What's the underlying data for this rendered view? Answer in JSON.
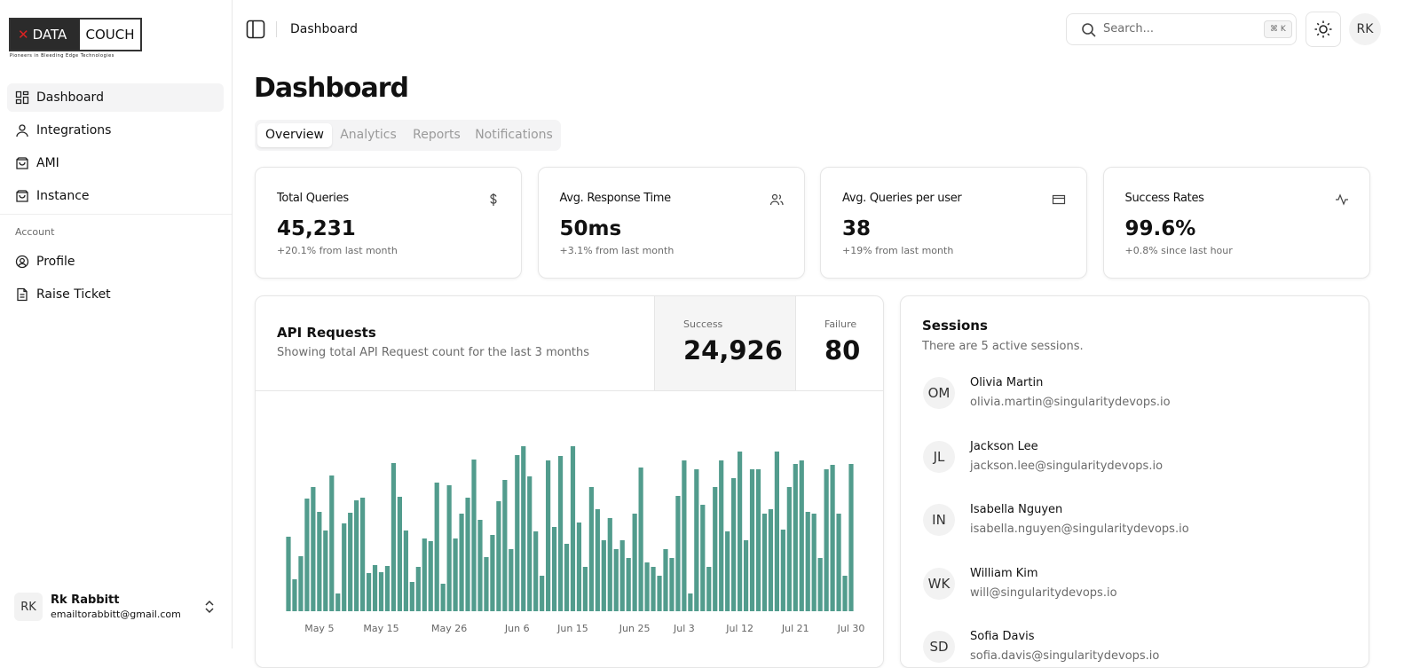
{
  "logo": {
    "brand1": "DATA",
    "brand2": "COUCH",
    "tagline": "Pioneers in Bleeding Edge Technologies"
  },
  "sidebar": {
    "nav": [
      "Dashboard",
      "Integrations",
      "AMI",
      "Instance"
    ],
    "section": "Account",
    "account_nav": [
      "Profile",
      "Raise Ticket"
    ],
    "user": {
      "initials": "RK",
      "name": "Rk Rabbitt",
      "email": "emailtorabbitt@gmail.com"
    }
  },
  "header": {
    "breadcrumb": "Dashboard",
    "search": "Search...",
    "shortcut": "⌘ K",
    "avatar": "RK"
  },
  "page_title": "Dashboard",
  "tabs": [
    "Overview",
    "Analytics",
    "Reports",
    "Notifications"
  ],
  "stats": [
    {
      "label": "Total Queries",
      "value": "45,231",
      "note": "+20.1% from last month"
    },
    {
      "label": "Avg. Response Time",
      "value": "50ms",
      "note": "+3.1% from last month"
    },
    {
      "label": "Avg. Queries per user",
      "value": "38",
      "note": "+19% from last month"
    },
    {
      "label": "Success Rates",
      "value": "99.6%",
      "note": "+0.8% since last hour"
    }
  ],
  "api": {
    "title": "API Requests",
    "subtitle": "Showing total API Request count for the last 3 months",
    "success_label": "Success",
    "success": "24,926",
    "failure_label": "Failure",
    "failure": "80"
  },
  "sessions": {
    "title": "Sessions",
    "subtitle": "There are 5 active sessions.",
    "people": [
      {
        "initials": "OM",
        "name": "Olivia Martin",
        "email": "olivia.martin@singularitydevops.io"
      },
      {
        "initials": "JL",
        "name": "Jackson Lee",
        "email": "jackson.lee@singularitydevops.io"
      },
      {
        "initials": "IN",
        "name": "Isabella Nguyen",
        "email": "isabella.nguyen@singularitydevops.io"
      },
      {
        "initials": "WK",
        "name": "William Kim",
        "email": "will@singularitydevops.io"
      },
      {
        "initials": "SD",
        "name": "Sofia Davis",
        "email": "sofia.davis@singularitydevops.io"
      }
    ]
  },
  "chart_data": {
    "type": "bar",
    "color": "#529c8d",
    "ylim": [
      0,
      200
    ],
    "categories": [
      null,
      null,
      null,
      null,
      null,
      "May 5",
      null,
      null,
      null,
      null,
      null,
      null,
      null,
      null,
      null,
      "May 15",
      null,
      null,
      null,
      null,
      null,
      null,
      null,
      null,
      null,
      null,
      "May 26",
      null,
      null,
      null,
      null,
      null,
      null,
      null,
      null,
      null,
      null,
      "Jun 6",
      null,
      null,
      null,
      null,
      null,
      null,
      null,
      null,
      "Jun 15",
      null,
      null,
      null,
      null,
      null,
      null,
      null,
      null,
      null,
      "Jun 25",
      null,
      null,
      null,
      null,
      null,
      null,
      null,
      "Jul 3",
      null,
      null,
      null,
      null,
      null,
      null,
      null,
      null,
      "Jul 12",
      null,
      null,
      null,
      null,
      null,
      null,
      null,
      null,
      "Jul 21",
      null,
      null,
      null,
      null,
      null,
      null,
      null,
      null,
      "Jul 30"
    ],
    "values": [
      84,
      36,
      62,
      127,
      140,
      112,
      91,
      153,
      20,
      99,
      111,
      125,
      128,
      43,
      52,
      44,
      51,
      167,
      129,
      91,
      33,
      50,
      82,
      79,
      145,
      31,
      142,
      82,
      110,
      128,
      171,
      103,
      61,
      86,
      124,
      148,
      70,
      176,
      186,
      152,
      90,
      40,
      170,
      95,
      175,
      76,
      186,
      100,
      50,
      140,
      115,
      80,
      105,
      70,
      80,
      60,
      110,
      162,
      55,
      50,
      40,
      70,
      60,
      130,
      170,
      20,
      160,
      120,
      50,
      140,
      170,
      90,
      150,
      180,
      80,
      160,
      160,
      110,
      115,
      180,
      92,
      140,
      166,
      170,
      112,
      110,
      60,
      160,
      165,
      110,
      40,
      166
    ]
  }
}
